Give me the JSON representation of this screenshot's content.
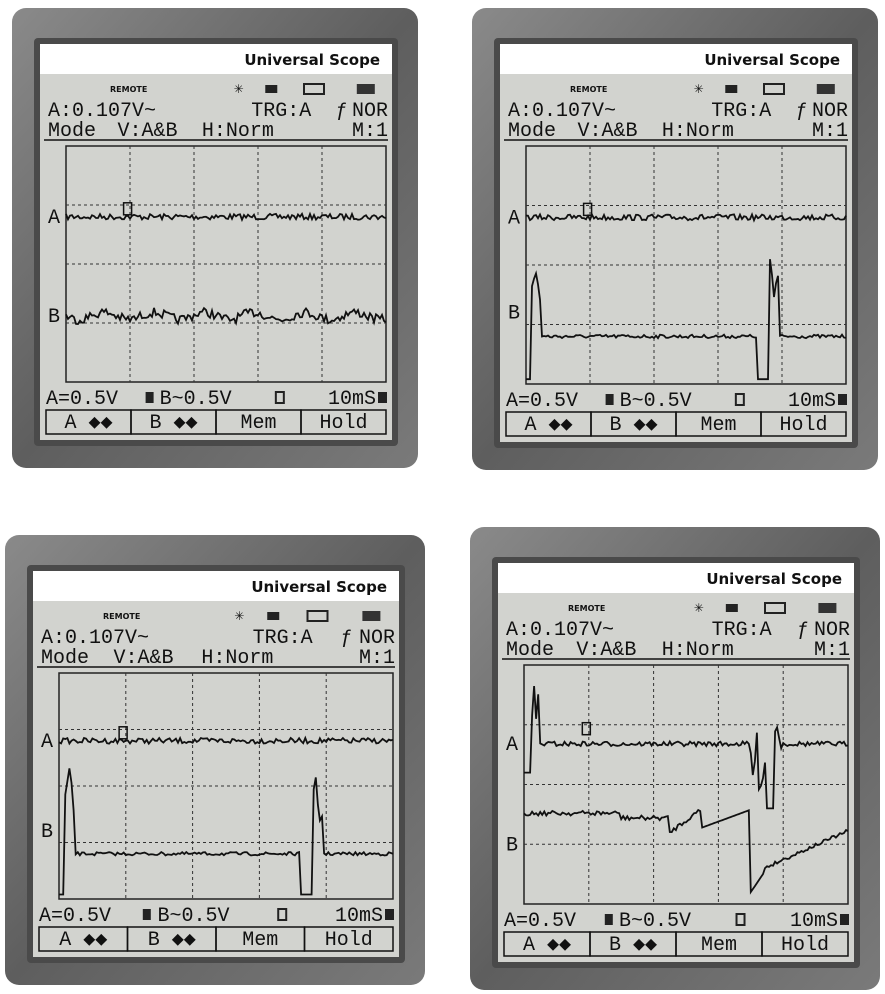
{
  "panels": [
    {
      "title": "Universal Scope",
      "status": "REMOTE",
      "reading": "A:0.107V~",
      "trigger": "TRG:A",
      "trigger_mode": "NOR",
      "mode": "Mode",
      "vertical": "V:A&B",
      "horizontal": "H:Norm",
      "memory": "M:1",
      "channel_a": "A",
      "channel_b": "B",
      "scale_a": "A=0.5V",
      "scale_b": "B~0.5V",
      "timebase": "10mS",
      "buttons": [
        "A ◆◆",
        "B ◆◆",
        "Mem",
        "Hold"
      ]
    },
    {
      "title": "Universal Scope",
      "status": "REMOTE",
      "reading": "A:0.107V~",
      "trigger": "TRG:A",
      "trigger_mode": "NOR",
      "mode": "Mode",
      "vertical": "V:A&B",
      "horizontal": "H:Norm",
      "memory": "M:1",
      "channel_a": "A",
      "channel_b": "B",
      "scale_a": "A=0.5V",
      "scale_b": "B~0.5V",
      "timebase": "10mS",
      "buttons": [
        "A ◆◆",
        "B ◆◆",
        "Mem",
        "Hold"
      ]
    },
    {
      "title": "Universal Scope",
      "status": "REMOTE",
      "reading": "A:0.107V~",
      "trigger": "TRG:A",
      "trigger_mode": "NOR",
      "mode": "Mode",
      "vertical": "V:A&B",
      "horizontal": "H:Norm",
      "memory": "M:1",
      "channel_a": "A",
      "channel_b": "B",
      "scale_a": "A=0.5V",
      "scale_b": "B~0.5V",
      "timebase": "10mS",
      "buttons": [
        "A ◆◆",
        "B ◆◆",
        "Mem",
        "Hold"
      ]
    },
    {
      "title": "Universal Scope",
      "status": "REMOTE",
      "reading": "A:0.107V~",
      "trigger": "TRG:A",
      "trigger_mode": "NOR",
      "mode": "Mode",
      "vertical": "V:A&B",
      "horizontal": "H:Norm",
      "memory": "M:1",
      "channel_a": "A",
      "channel_b": "B",
      "scale_a": "A=0.5V",
      "scale_b": "B~0.5V",
      "timebase": "10mS",
      "buttons": [
        "A ◆◆",
        "B ◆◆",
        "Mem",
        "Hold"
      ]
    }
  ]
}
